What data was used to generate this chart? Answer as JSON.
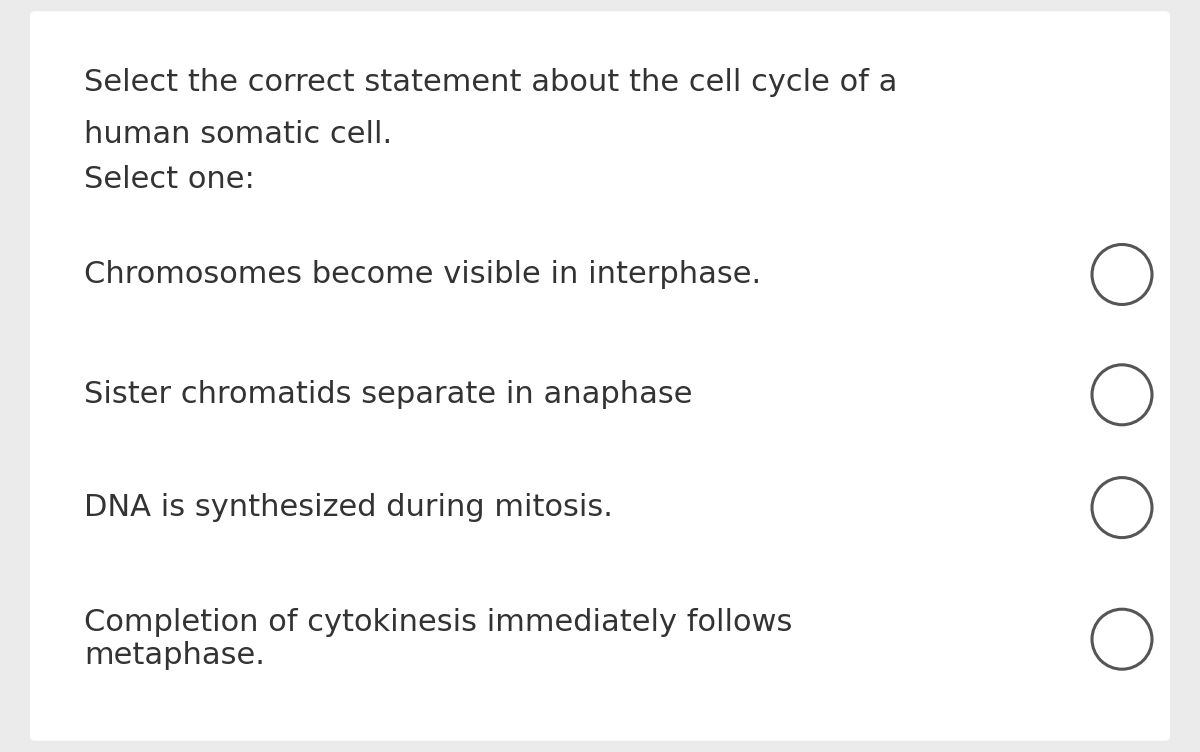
{
  "background_color": "#ebebeb",
  "card_color": "#ffffff",
  "text_color": "#333333",
  "circle_color": "#555555",
  "title_lines": [
    "Select the correct statement about the cell cycle of a",
    "human somatic cell.",
    "Select one:"
  ],
  "options": [
    "Chromosomes become visible in interphase.",
    "Sister chromatids separate in anaphase",
    "DNA is synthesized during mitosis.",
    "Completion of cytokinesis immediately follows\nmetaphase."
  ],
  "title_fontsize": 22,
  "option_fontsize": 22,
  "circle_linewidth": 2.2
}
